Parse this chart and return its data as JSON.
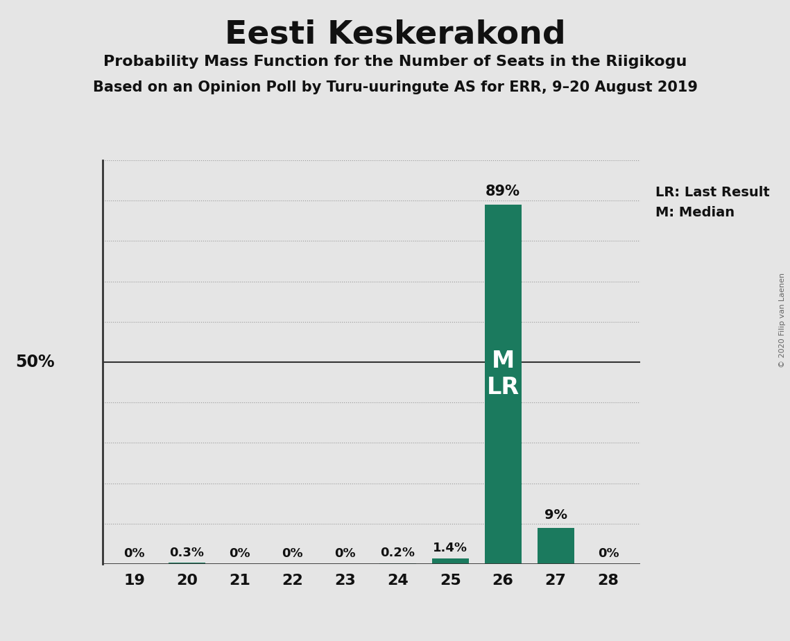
{
  "title": "Eesti Keskerakond",
  "subtitle1": "Probability Mass Function for the Number of Seats in the Riigikogu",
  "subtitle2": "Based on an Opinion Poll by Turu-uuringute AS for ERR, 9–20 August 2019",
  "copyright": "© 2020 Filip van Laenen",
  "categories": [
    19,
    20,
    21,
    22,
    23,
    24,
    25,
    26,
    27,
    28
  ],
  "values": [
    0.0,
    0.3,
    0.0,
    0.0,
    0.0,
    0.2,
    1.4,
    89.0,
    9.0,
    0.0
  ],
  "bar_color": "#1b7a5e",
  "background_color": "#e5e5e5",
  "ylim": [
    0,
    100
  ],
  "median_seat": 26,
  "last_result_seat": 26,
  "bar_labels": [
    "0%",
    "0.3%",
    "0%",
    "0%",
    "0%",
    "0.2%",
    "1.4%",
    "89%",
    "9%",
    "0%"
  ],
  "legend_lr": "LR: Last Result",
  "legend_m": "M: Median",
  "fifty_pct_label": "50%"
}
